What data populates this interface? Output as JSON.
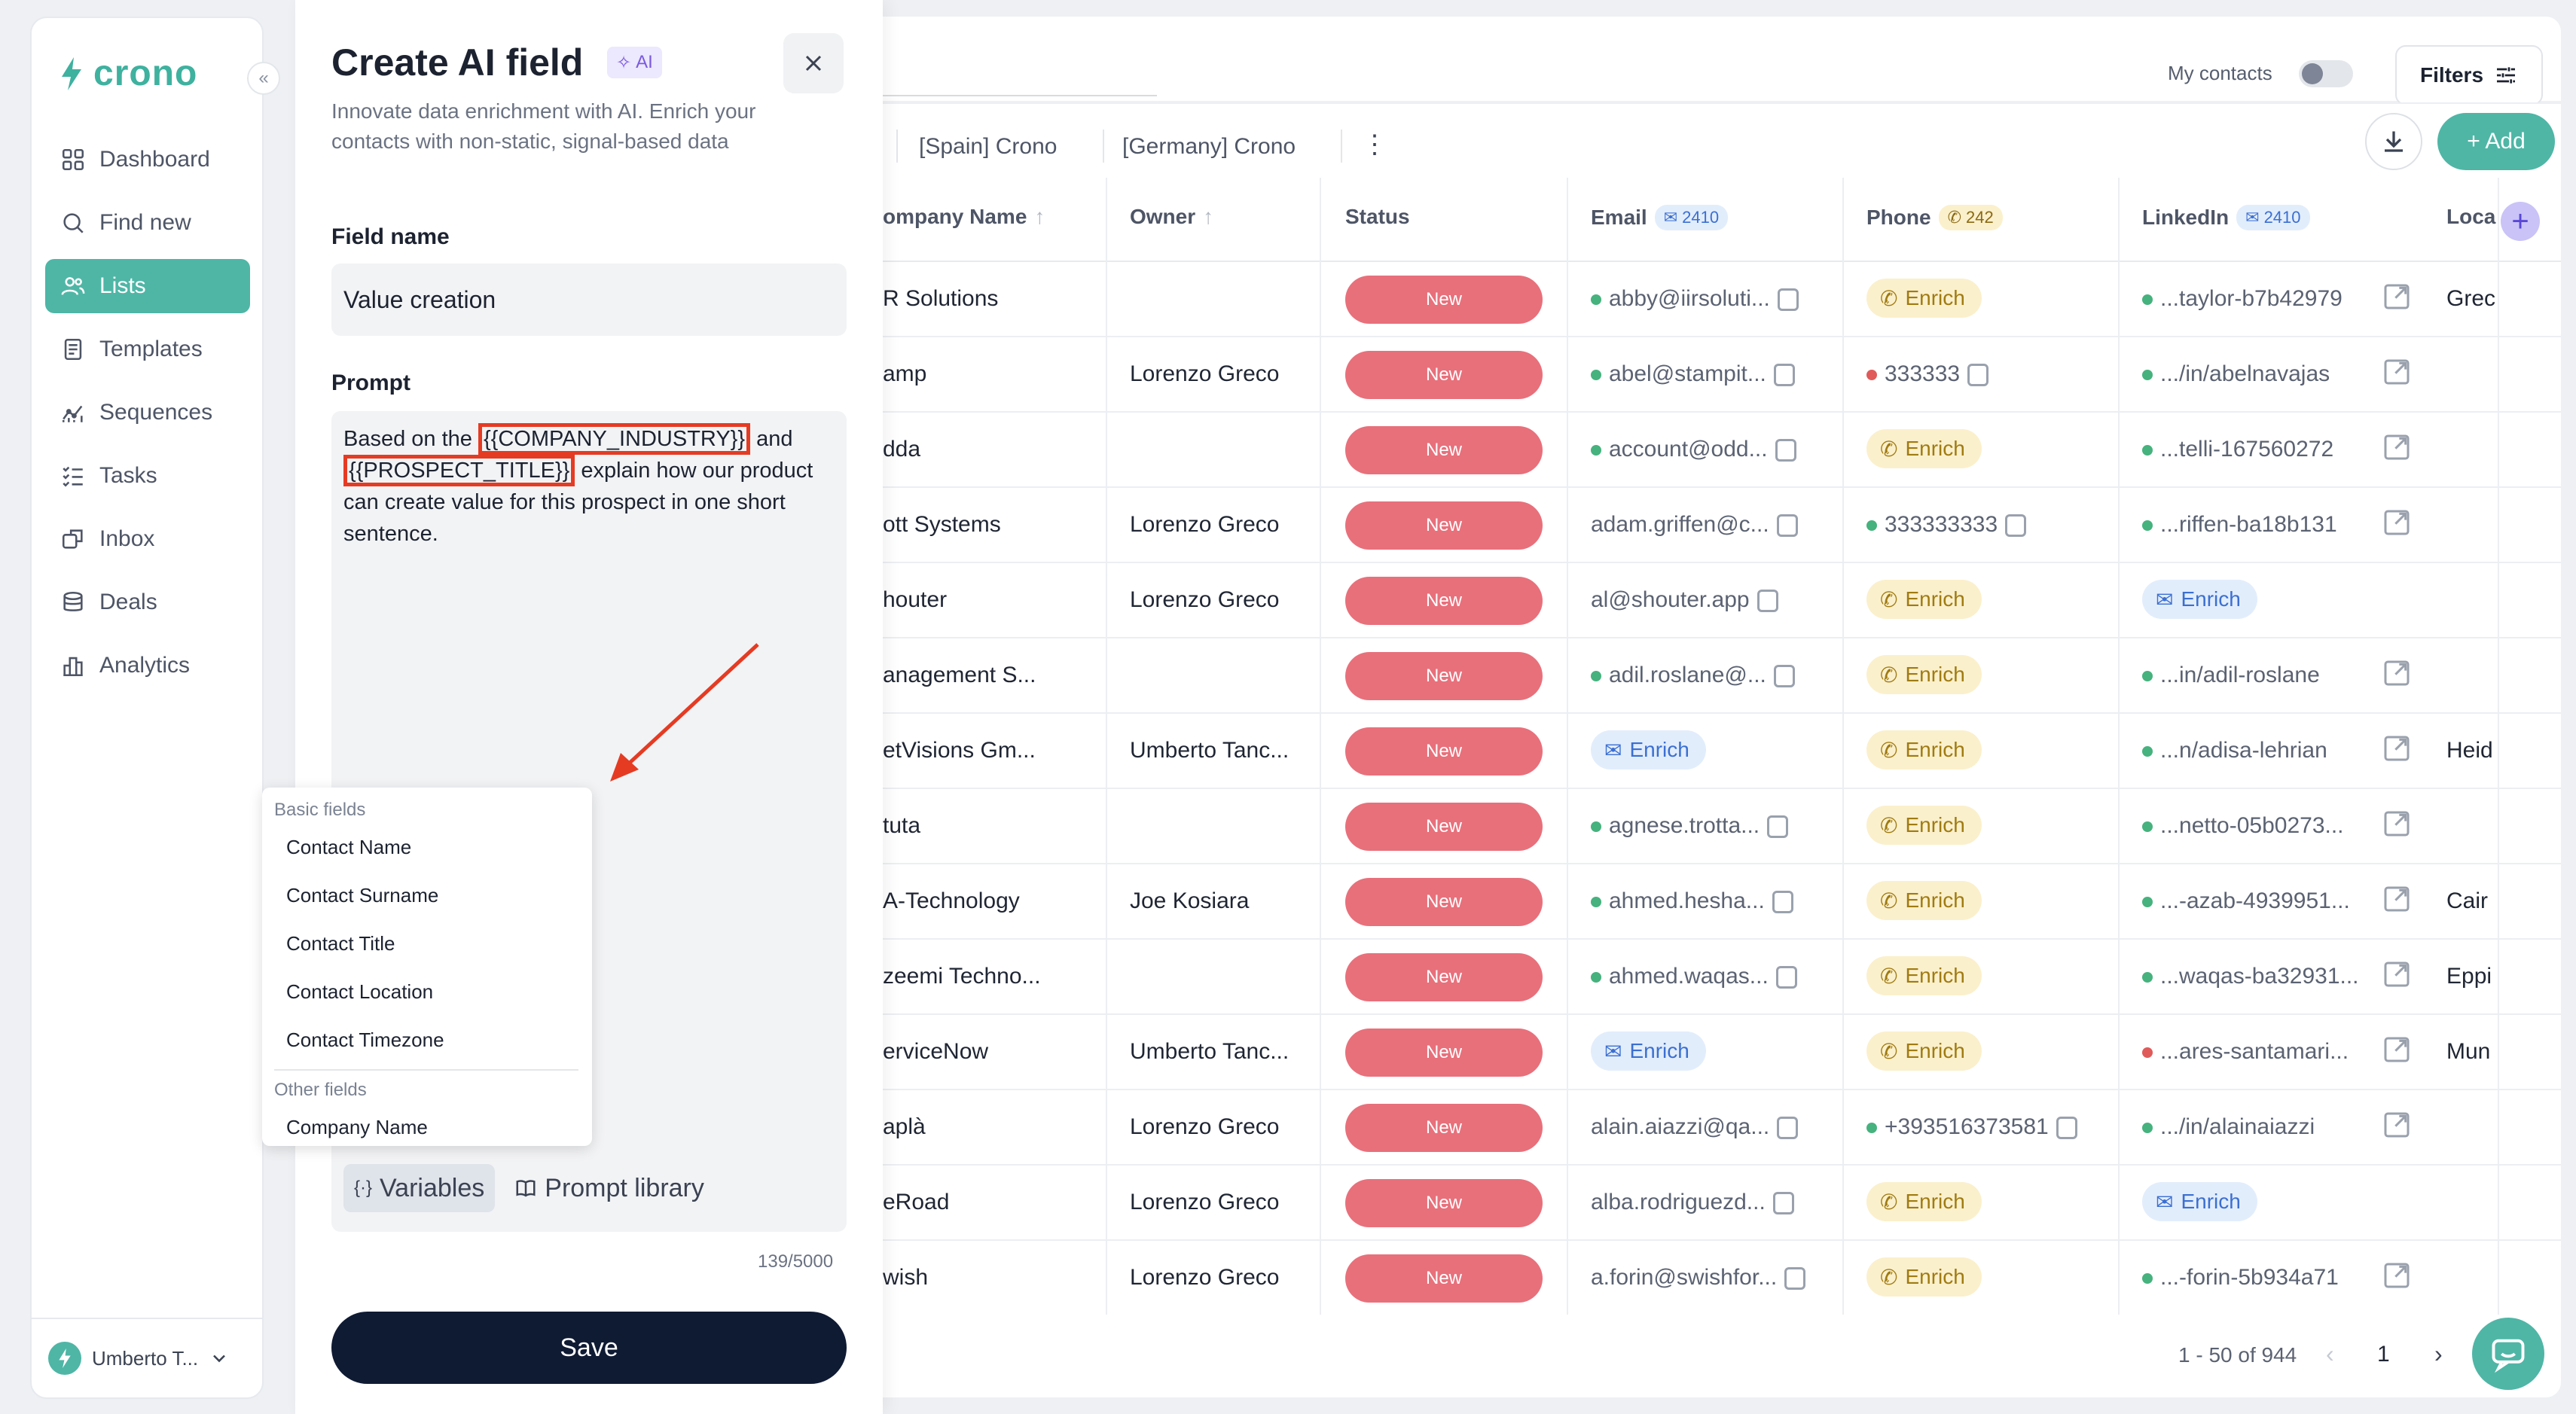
{
  "app": {
    "name": "crono"
  },
  "sidebar": {
    "items": [
      {
        "label": "Dashboard",
        "icon": "grid-icon",
        "active": false
      },
      {
        "label": "Find new",
        "icon": "search-icon",
        "active": false
      },
      {
        "label": "Lists",
        "icon": "users-icon",
        "active": true
      },
      {
        "label": "Templates",
        "icon": "template-icon",
        "active": false
      },
      {
        "label": "Sequences",
        "icon": "sequence-icon",
        "active": false
      },
      {
        "label": "Tasks",
        "icon": "tasks-icon",
        "active": false
      },
      {
        "label": "Inbox",
        "icon": "inbox-icon",
        "active": false
      },
      {
        "label": "Deals",
        "icon": "deals-icon",
        "active": false
      },
      {
        "label": "Analytics",
        "icon": "analytics-icon",
        "active": false
      }
    ],
    "user": "Umberto T..."
  },
  "topbar": {
    "my_contacts": "My contacts",
    "filters": "Filters"
  },
  "tabs": [
    "[Spain] Crono",
    "[Germany] Crono"
  ],
  "actions": {
    "add": "+ Add"
  },
  "table": {
    "headers": {
      "company": "ompany Name",
      "owner": "Owner",
      "status": "Status",
      "email": "Email",
      "email_count": "2410",
      "phone": "Phone",
      "phone_count": "242",
      "linkedin": "LinkedIn",
      "linkedin_count": "2410",
      "location": "Loca"
    },
    "enrich_label": "Enrich",
    "status_label": "New",
    "rows": [
      {
        "company": "R Solutions",
        "owner": "",
        "email": "abby@iirsoluti...",
        "email_dot": "g",
        "phone": "",
        "phone_enrich": true,
        "linkedin": "...taylor-b7b42979",
        "li_dot": "g",
        "location": "Grec"
      },
      {
        "company": "amp",
        "owner": "Lorenzo Greco",
        "email": "abel@stampit...",
        "email_dot": "g",
        "phone": "333333",
        "phone_dot": "r",
        "linkedin": ".../in/abelnavajas",
        "li_dot": "g",
        "location": ""
      },
      {
        "company": "dda",
        "owner": "",
        "email": "account@odd...",
        "email_dot": "g",
        "phone": "",
        "phone_enrich": true,
        "linkedin": "...telli-167560272",
        "li_dot": "g",
        "location": ""
      },
      {
        "company": "ott Systems",
        "owner": "Lorenzo Greco",
        "email": "adam.griffen@c...",
        "email_dot": "",
        "phone": "333333333",
        "phone_dot": "g",
        "linkedin": "...riffen-ba18b131",
        "li_dot": "g",
        "location": ""
      },
      {
        "company": "houter",
        "owner": "Lorenzo Greco",
        "email": "al@shouter.app",
        "email_dot": "",
        "phone": "",
        "phone_enrich": true,
        "linkedin": "",
        "li_enrich": true,
        "location": ""
      },
      {
        "company": "anagement S...",
        "owner": "",
        "email": "adil.roslane@...",
        "email_dot": "g",
        "phone": "",
        "phone_enrich": true,
        "linkedin": "...in/adil-roslane",
        "li_dot": "g",
        "location": ""
      },
      {
        "company": "etVisions Gm...",
        "owner": "Umberto Tanc...",
        "email": "",
        "email_enrich": true,
        "phone": "",
        "phone_enrich": true,
        "linkedin": "...n/adisa-lehrian",
        "li_dot": "g",
        "location": "Heid"
      },
      {
        "company": "tuta",
        "owner": "",
        "email": "agnese.trotta...",
        "email_dot": "g",
        "phone": "",
        "phone_enrich": true,
        "linkedin": "...netto-05b0273...",
        "li_dot": "g",
        "location": ""
      },
      {
        "company": "A-Technology",
        "owner": "Joe Kosiara",
        "email": "ahmed.hesha...",
        "email_dot": "g",
        "phone": "",
        "phone_enrich": true,
        "linkedin": "...-azab-4939951...",
        "li_dot": "g",
        "location": "Cair"
      },
      {
        "company": "zeemi Techno...",
        "owner": "",
        "email": "ahmed.waqas...",
        "email_dot": "g",
        "phone": "",
        "phone_enrich": true,
        "linkedin": "...waqas-ba32931...",
        "li_dot": "g",
        "location": "Eppi"
      },
      {
        "company": "erviceNow",
        "owner": "Umberto Tanc...",
        "email": "",
        "email_enrich": true,
        "phone": "",
        "phone_enrich": true,
        "linkedin": "...ares-santamari...",
        "li_dot": "r",
        "location": "Mun"
      },
      {
        "company": "aplà",
        "owner": "Lorenzo Greco",
        "email": "alain.aiazzi@qa...",
        "email_dot": "",
        "phone": "+393516373581",
        "phone_dot": "g",
        "linkedin": ".../in/alainaiazzi",
        "li_dot": "g",
        "location": ""
      },
      {
        "company": "eRoad",
        "owner": "Lorenzo Greco",
        "email": "alba.rodriguezd...",
        "email_dot": "",
        "phone": "",
        "phone_enrich": true,
        "linkedin": "",
        "li_enrich": true,
        "location": ""
      },
      {
        "company": "wish",
        "owner": "Lorenzo Greco",
        "email": "a.forin@swishfor...",
        "email_dot": "",
        "phone": "",
        "phone_enrich": true,
        "linkedin": "...-forin-5b934a71",
        "li_dot": "g",
        "location": ""
      }
    ]
  },
  "pager": {
    "range": "1 - 50 of 944",
    "page": "1"
  },
  "modal": {
    "title": "Create AI field",
    "badge": "AI",
    "description": "Innovate data enrichment with AI. Enrich your contacts with non-static, signal-based data",
    "field_name_label": "Field name",
    "field_name_value": "Value creation",
    "prompt_label": "Prompt",
    "prompt": {
      "part1": "Based on the ",
      "var1": "{{COMPANY_INDUSTRY}}",
      "part2": " and ",
      "var2": "{{PROSPECT_TITLE}}",
      "part3": " explain how our product can create value for this prospect in one short sentence."
    },
    "variables_btn": "Variables",
    "library_btn": "Prompt library",
    "counter": "139/5000",
    "save": "Save"
  },
  "dropdown": {
    "group1": "Basic fields",
    "items1": [
      "Contact Name",
      "Contact Surname",
      "Contact Title",
      "Contact Location",
      "Contact Timezone"
    ],
    "group2": "Other fields",
    "items2": [
      "Company Name"
    ]
  },
  "colors": {
    "brand": "#4fb6a6",
    "status_new": "#e8707b",
    "annotation": "#e53b23",
    "save": "#0f1a33"
  }
}
